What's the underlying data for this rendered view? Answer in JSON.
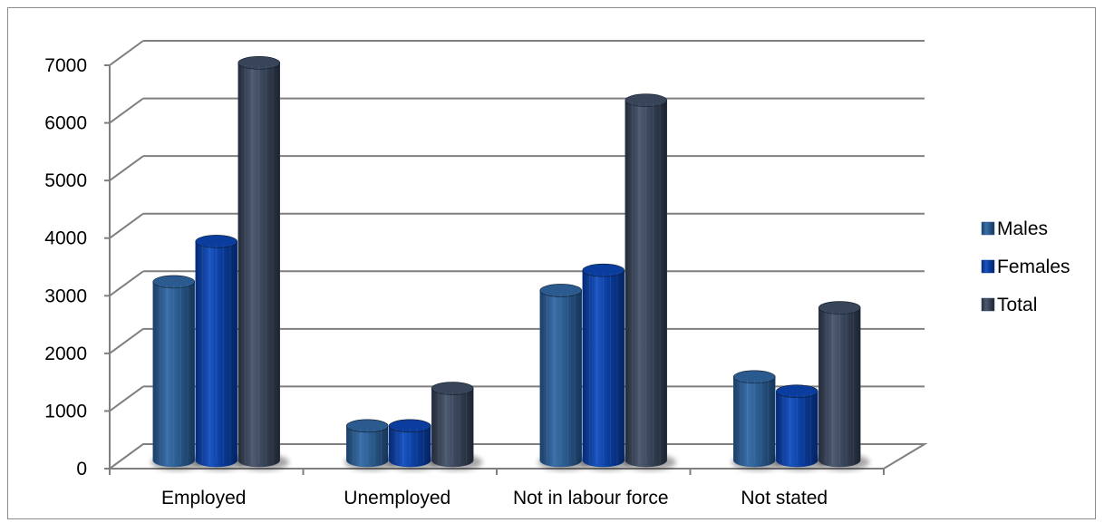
{
  "chart_data": {
    "type": "bar",
    "title": "",
    "xlabel": "",
    "ylabel": "",
    "ylim": [
      0,
      7000
    ],
    "yticks": [
      0,
      1000,
      2000,
      3000,
      4000,
      5000,
      6000,
      7000
    ],
    "categories": [
      "Employed",
      "Unemployed",
      "Not in labour force",
      "Not stated"
    ],
    "series": [
      {
        "name": "Males",
        "values": [
          3100,
          600,
          2950,
          1450
        ],
        "color": "#2a5a8e"
      },
      {
        "name": "Females",
        "values": [
          3800,
          600,
          3300,
          1200
        ],
        "color": "#0a3d9e"
      },
      {
        "name": "Total",
        "values": [
          6900,
          1250,
          6250,
          2650
        ],
        "color": "#384458"
      }
    ],
    "grid": true,
    "style": "3d-cylinder",
    "legend_position": "right"
  }
}
